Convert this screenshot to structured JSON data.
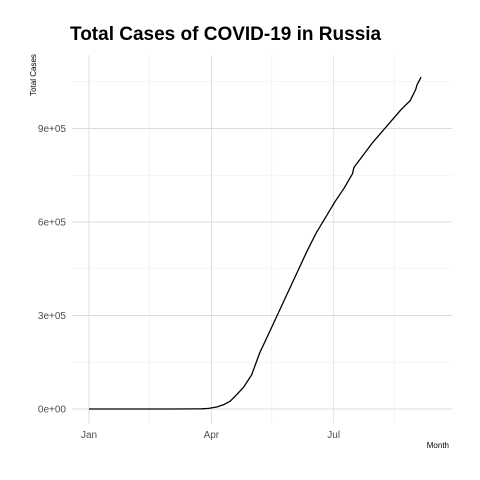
{
  "chart_data": {
    "type": "line",
    "title": "Total Cases of COVID-19 in Russia",
    "xlabel": "Month",
    "ylabel": "Total Cases",
    "x_ticks": [
      "Jan",
      "Apr",
      "Jul"
    ],
    "y_ticks": [
      "0e+00",
      "3e+05",
      "6e+05",
      "9e+05"
    ],
    "xlim": [
      "2020-01-01",
      "2020-09-07"
    ],
    "ylim": [
      -40000,
      1110000
    ],
    "grid": true,
    "series": [
      {
        "color": "#000000",
        "x": [
          "2020-01-01",
          "2020-01-31",
          "2020-03-01",
          "2020-03-20",
          "2020-03-25",
          "2020-03-30",
          "2020-04-05",
          "2020-04-10",
          "2020-04-15",
          "2020-04-20",
          "2020-04-25",
          "2020-05-01",
          "2020-05-07",
          "2020-05-14",
          "2020-05-21",
          "2020-05-28",
          "2020-06-04",
          "2020-06-11",
          "2020-06-18",
          "2020-06-25",
          "2020-07-02",
          "2020-07-09",
          "2020-07-15",
          "2020-07-16",
          "2020-07-23",
          "2020-07-30",
          "2020-08-06",
          "2020-08-13",
          "2020-08-20",
          "2020-08-27",
          "2020-08-31",
          "2020-09-01",
          "2020-09-04"
        ],
        "y": [
          0,
          0,
          0,
          250,
          650,
          1800,
          6300,
          13500,
          25000,
          47000,
          70000,
          110000,
          180000,
          245000,
          310000,
          375000,
          440000,
          505000,
          565000,
          615000,
          665000,
          710000,
          755000,
          775000,
          815000,
          855000,
          890000,
          925000,
          960000,
          990000,
          1025000,
          1040000,
          1065000
        ]
      }
    ]
  }
}
